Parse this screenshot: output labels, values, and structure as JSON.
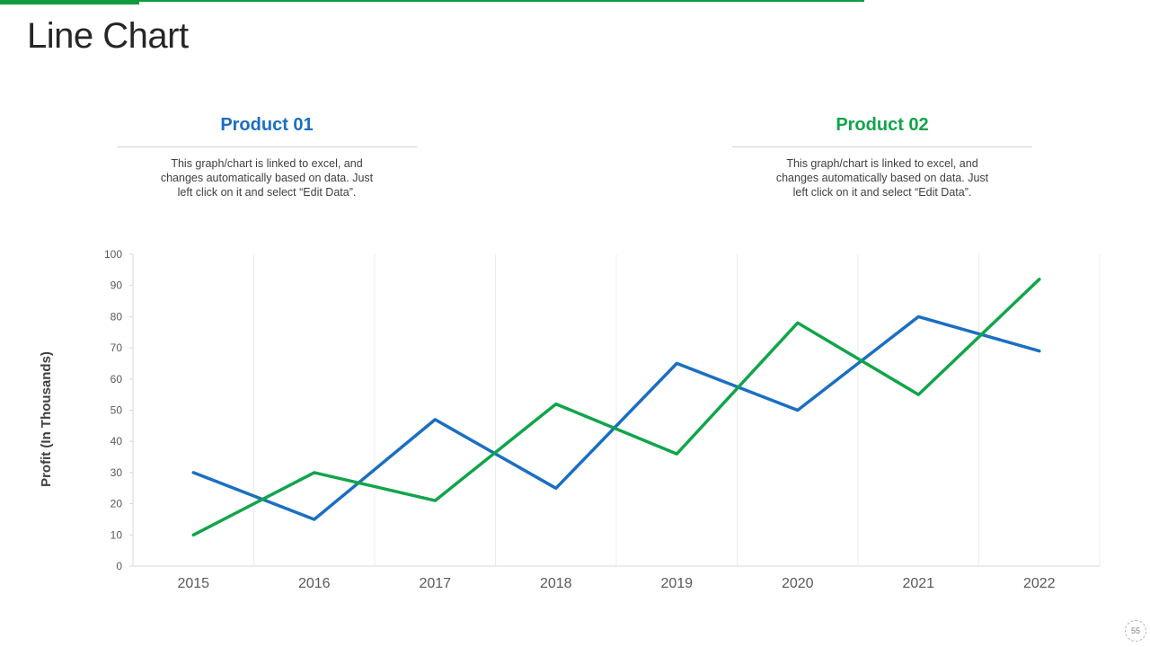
{
  "slide": {
    "title": "Line Chart",
    "page_number": "55"
  },
  "products": [
    {
      "name": "Product 01",
      "color": "#1a6fc2",
      "description": "This graph/chart is linked to excel, and changes automatically based on data. Just left click on it and select “Edit Data”."
    },
    {
      "name": "Product 02",
      "color": "#10a54a",
      "description": "This graph/chart is linked to excel, and changes automatically based on data. Just left click on it and select “Edit Data”."
    }
  ],
  "colors": {
    "accent": "#109c3e",
    "series1": "#1a6fc2",
    "series2": "#10a54a"
  },
  "chart_data": {
    "type": "line",
    "title": "",
    "xlabel": "",
    "ylabel": "Profit (In Thousands)",
    "categories": [
      "2015",
      "2016",
      "2017",
      "2018",
      "2019",
      "2020",
      "2021",
      "2022"
    ],
    "yticks": [
      0,
      10,
      20,
      30,
      40,
      50,
      60,
      70,
      80,
      90,
      100
    ],
    "ylim": [
      0,
      100
    ],
    "grid": "vertical",
    "series": [
      {
        "name": "Product 01",
        "color": "#1a6fc2",
        "values": [
          30,
          15,
          47,
          25,
          65,
          50,
          80,
          69
        ]
      },
      {
        "name": "Product 02",
        "color": "#10a54a",
        "values": [
          10,
          30,
          21,
          52,
          36,
          78,
          55,
          92
        ]
      }
    ]
  }
}
